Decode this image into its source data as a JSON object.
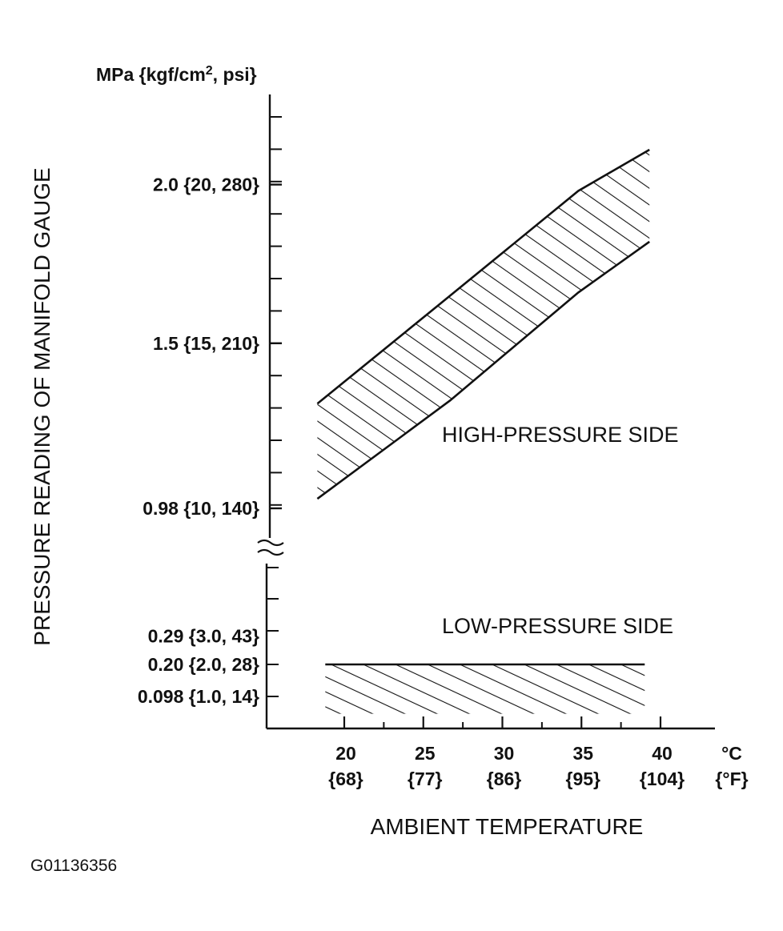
{
  "chart_data": {
    "type": "area",
    "y_unit_label_pre": "MPa {kgf/cm",
    "y_unit_label_sup": "2",
    "y_unit_label_post": ", psi}",
    "ylabel": "PRESSURE READING OF MANIFOLD GAUGE",
    "xlabel": "AMBIENT TEMPERATURE",
    "x_unit_c": "°C",
    "x_unit_f": "{°F}",
    "x_ticks": [
      {
        "c": 20,
        "c_label": "20",
        "f_label": "{68}"
      },
      {
        "c": 25,
        "c_label": "25",
        "f_label": "{77}"
      },
      {
        "c": 30,
        "c_label": "30",
        "f_label": "{86}"
      },
      {
        "c": 35,
        "c_label": "35",
        "f_label": "{95}"
      },
      {
        "c": 40,
        "c_label": "40",
        "f_label": "{104}"
      }
    ],
    "xlim": [
      15,
      43
    ],
    "y_axis_break": true,
    "y_upper_ticks": [
      {
        "value": 0.98,
        "label": "0.98 {10, 140}"
      },
      {
        "value": 1.5,
        "label": "1.5 {15, 210}"
      },
      {
        "value": 2.0,
        "label": "2.0 {20, 280}"
      }
    ],
    "y_lower_ticks": [
      {
        "value": 0.098,
        "label": "0.098 {1.0, 14}"
      },
      {
        "value": 0.2,
        "label": "0.20 {2.0, 28}"
      },
      {
        "value": 0.29,
        "label": "0.29 {3.0, 43}"
      }
    ],
    "series": [
      {
        "name": "HIGH-PRESSURE SIDE",
        "segment": "upper",
        "x": [
          18.3,
          26.7,
          34.8,
          39.3
        ],
        "y_top": [
          1.31,
          1.65,
          1.98,
          2.11
        ],
        "y_bottom": [
          1.01,
          1.32,
          1.66,
          1.82
        ]
      },
      {
        "name": "LOW-PRESSURE SIDE",
        "segment": "lower",
        "x": [
          18.8,
          39.0
        ],
        "y_top": [
          0.2,
          0.2
        ],
        "y_bottom": [
          0.043,
          0.043
        ]
      }
    ],
    "grid": false,
    "hatched": true
  },
  "figure_code": "G01136356"
}
